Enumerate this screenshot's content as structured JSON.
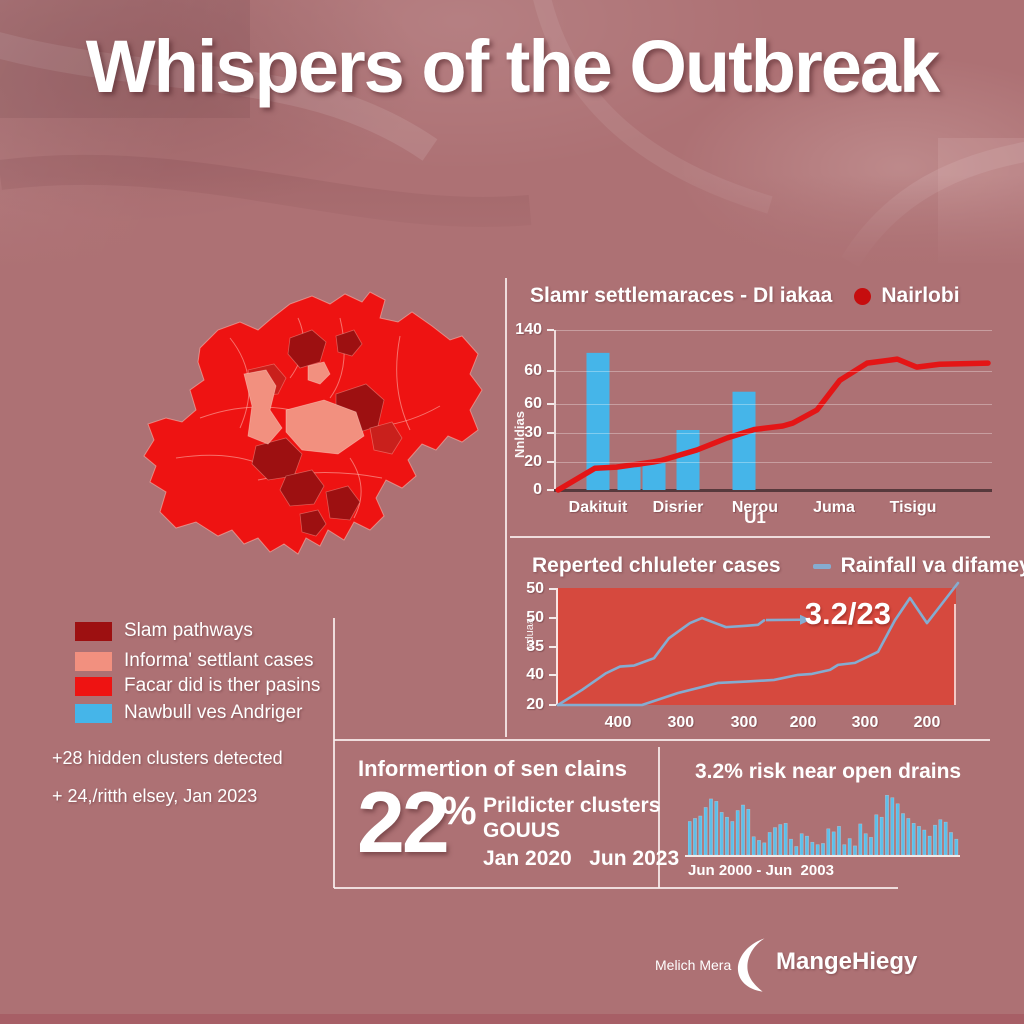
{
  "title": "Whispers of the Outbreak",
  "colors": {
    "background": "#ad7174",
    "text": "#ffffff",
    "panel_line": "#f6ebea",
    "bar_blue": "#45b5e9",
    "line_red": "#e41516",
    "area_fill": "#d6493e",
    "steel_blue": "#85acd0",
    "bright_red": "#ee1312",
    "dark_red": "#9d1011",
    "mid_red": "#c9201c",
    "salmon": "#f2907f",
    "sparkline_blue": "#5ebfe9",
    "legend_dot_red": "#c60d0e",
    "footer_strip": "#a4565f"
  },
  "legend": {
    "items": [
      {
        "label": "Slam pathways",
        "color_key": "dark_red"
      },
      {
        "label": "Informa' settlant cases",
        "color_key": "salmon"
      },
      {
        "label": "Facar did is ther pasins",
        "color_key": "bright_red"
      },
      {
        "label": "Nawbull ves Andriger",
        "color_key": "bar_blue"
      }
    ]
  },
  "notes": [
    "+28 hidden clusters detected",
    "+ 24,/ritth elsey, Jan 2023"
  ],
  "stats": {
    "heading": "Informertion of sen clains",
    "big_value": "22",
    "percent_sign": "%",
    "line1": "Prildicter clusters",
    "line2": "GOUUS",
    "date_range": "Jan 2020   Jun 2023"
  },
  "footer": {
    "credit": "Melich Mera",
    "brand": "MangeHiegy"
  },
  "chart_data": [
    {
      "type": "bar",
      "title": "Slamr settlemaraces - Dl iakaa",
      "series_label": "Nairlobi",
      "ylabel": "Nnldias",
      "xlabel": "U1",
      "xlabel_f": 0.4606,
      "ylim": [
        0,
        140
      ],
      "grid": true,
      "legend_position": "top",
      "yticks": [
        {
          "label": "140",
          "f": 0.0
        },
        {
          "label": "60",
          "f": 0.256
        },
        {
          "label": "60",
          "f": 0.4625
        },
        {
          "label": "30",
          "f": 0.644
        },
        {
          "label": "20",
          "f": 0.825
        },
        {
          "label": "0",
          "f": 1.0
        }
      ],
      "categories": [
        {
          "label": "Dakituit",
          "f": 0.0972
        },
        {
          "label": "Disrier",
          "f": 0.2824
        },
        {
          "label": "Nerou",
          "f": 0.4606
        },
        {
          "label": "Juma",
          "f": 0.6435
        },
        {
          "label": "Tisigu",
          "f": 0.8264
        }
      ],
      "bars": [
        {
          "f": 0.0972,
          "value": 120
        },
        {
          "f": 0.169,
          "value": 20
        },
        {
          "f": 0.2269,
          "value": 23.5
        },
        {
          "f": 0.3056,
          "value": 52.5
        },
        {
          "f": 0.4352,
          "value": 86
        }
      ],
      "line": {
        "name": "Nairlobi",
        "points": [
          [
            0.005,
            0
          ],
          [
            0.09,
            19
          ],
          [
            0.14,
            20
          ],
          [
            0.225,
            24.5
          ],
          [
            0.245,
            26
          ],
          [
            0.326,
            35
          ],
          [
            0.396,
            45.5
          ],
          [
            0.46,
            53
          ],
          [
            0.525,
            56
          ],
          [
            0.548,
            58.5
          ],
          [
            0.604,
            70
          ],
          [
            0.657,
            96
          ],
          [
            0.72,
            111
          ],
          [
            0.79,
            114.5
          ],
          [
            0.835,
            107.5
          ],
          [
            0.888,
            110
          ],
          [
            1.0,
            111
          ]
        ]
      }
    },
    {
      "type": "line",
      "title": "Reperted chluleter cases",
      "legend_label": "Rainfall va difamey cases",
      "annotation": "3.2/23",
      "ylabel": "nduaa",
      "value_range": [
        20,
        55
      ],
      "yticks": [
        {
          "label": "50",
          "f": 0.01
        },
        {
          "label": "50",
          "f": 0.26
        },
        {
          "label": "35",
          "f": 0.5
        },
        {
          "label": "40",
          "f": 0.74
        },
        {
          "label": "20",
          "f": 1.0
        }
      ],
      "xticks": [
        {
          "label": "400",
          "f": 0.15
        },
        {
          "label": "300",
          "f": 0.307
        },
        {
          "label": "300",
          "f": 0.465
        },
        {
          "label": "200",
          "f": 0.6125
        },
        {
          "label": "300",
          "f": 0.7675
        },
        {
          "label": "200",
          "f": 0.9225
        }
      ],
      "series": [
        {
          "name": "reported",
          "points": [
            [
              0,
              20
            ],
            [
              0.06,
              24.5
            ],
            [
              0.12,
              29.5
            ],
            [
              0.155,
              31.5
            ],
            [
              0.19,
              31.8
            ],
            [
              0.24,
              34
            ],
            [
              0.2775,
              40
            ],
            [
              0.33,
              44.5
            ],
            [
              0.36,
              46
            ],
            [
              0.42,
              43.3
            ],
            [
              0.47,
              43.7
            ],
            [
              0.5,
              44
            ],
            [
              0.515,
              45.3
            ]
          ]
        },
        {
          "name": "rainfall",
          "points": [
            [
              0,
              20
            ],
            [
              0.21,
              20
            ],
            [
              0.3,
              23.6
            ],
            [
              0.35,
              25.1
            ],
            [
              0.4,
              26.6
            ],
            [
              0.47,
              27
            ],
            [
              0.54,
              27.5
            ],
            [
              0.6,
              29
            ],
            [
              0.635,
              29.3
            ],
            [
              0.68,
              30.5
            ],
            [
              0.7,
              32
            ],
            [
              0.7425,
              32.6
            ],
            [
              0.8,
              35.9
            ],
            [
              0.8425,
              45.4
            ],
            [
              0.88,
              52
            ],
            [
              0.9225,
              44.5
            ],
            [
              1.0,
              56.5
            ]
          ]
        }
      ],
      "arrow": {
        "from": [
          0.52,
          45.4
        ],
        "to": [
          0.605,
          45.5
        ]
      }
    },
    {
      "type": "bar",
      "title": "3.2% risk near open drains",
      "caption": "Jun 2000 - Jun  2003",
      "ylim": [
        0,
        1
      ],
      "values": [
        0.55,
        0.6,
        0.64,
        0.78,
        0.92,
        0.88,
        0.7,
        0.62,
        0.55,
        0.73,
        0.82,
        0.75,
        0.3,
        0.24,
        0.2,
        0.37,
        0.45,
        0.5,
        0.52,
        0.26,
        0.14,
        0.35,
        0.31,
        0.21,
        0.17,
        0.19,
        0.43,
        0.38,
        0.47,
        0.17,
        0.27,
        0.15,
        0.51,
        0.35,
        0.29,
        0.66,
        0.62,
        0.98,
        0.94,
        0.84,
        0.68,
        0.6,
        0.52,
        0.47,
        0.41,
        0.31,
        0.49,
        0.58,
        0.54,
        0.37,
        0.26
      ]
    }
  ]
}
